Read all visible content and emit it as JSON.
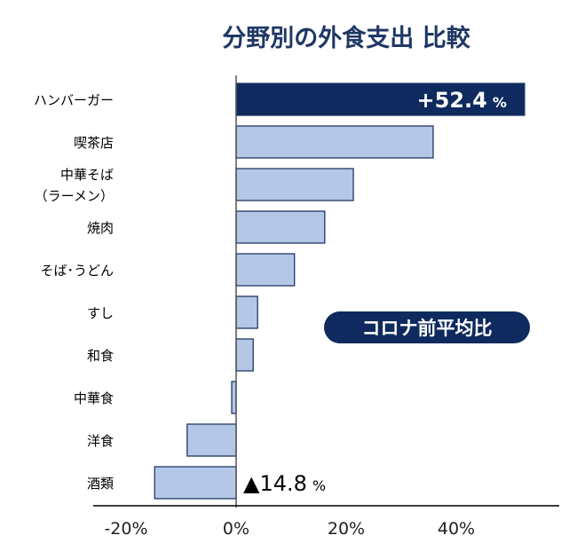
{
  "chart_data": {
    "type": "bar",
    "orientation": "horizontal",
    "title": "分野別の外食支出 比較",
    "legend_label": "コロナ前平均比",
    "categories": [
      [
        "ハンバーガー"
      ],
      [
        "喫茶店"
      ],
      [
        "中華そば",
        "（ラーメン）"
      ],
      [
        "焼肉"
      ],
      [
        "そば･うどん"
      ],
      [
        "すし"
      ],
      [
        "和食"
      ],
      [
        "中華食"
      ],
      [
        "洋食"
      ],
      [
        "酒類"
      ]
    ],
    "values": [
      52.4,
      35.8,
      21.3,
      16.1,
      10.6,
      3.9,
      3.1,
      -0.8,
      -8.9,
      -14.8
    ],
    "xlim": [
      -20,
      58
    ],
    "xticks": [
      -20,
      0,
      20,
      40
    ],
    "xtick_labels": [
      "-20%",
      "0%",
      "20%",
      "40%"
    ],
    "data_labels": [
      {
        "index": 0,
        "text": "+52.4",
        "unit": "%"
      },
      {
        "index": 9,
        "text": "▲14.8",
        "unit": "%"
      }
    ],
    "colors": {
      "highlight": "#0f2a5e",
      "bar": "#b4c7e7",
      "bar_edge": "#1f3864",
      "title": "#1f3864"
    }
  }
}
